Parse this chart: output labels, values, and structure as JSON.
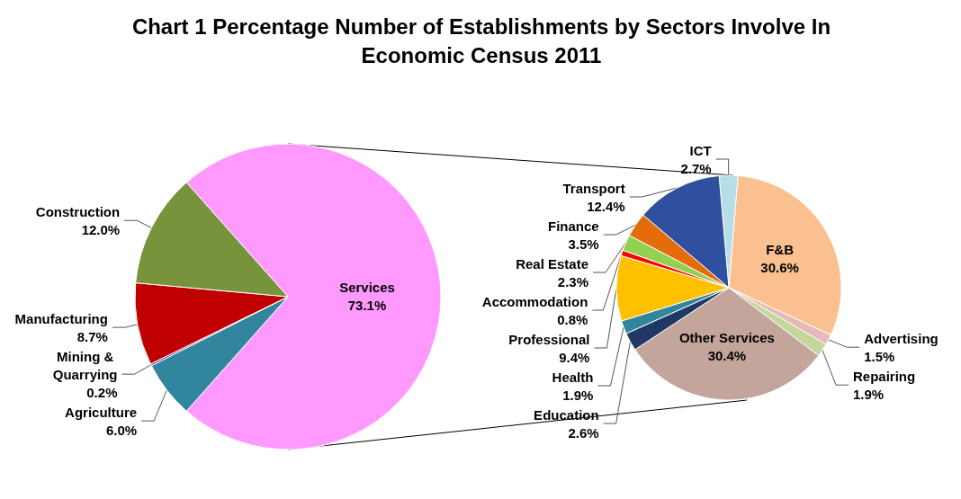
{
  "chart_data": [
    {
      "type": "pie",
      "title": "Chart 1 Percentage Number of Establishments by Sectors Involve In Economic Census 2011",
      "categories": [
        "Services",
        "Agriculture",
        "Mining & Quarrying",
        "Manufacturing",
        "Construction"
      ],
      "values": [
        73.1,
        6.0,
        0.2,
        8.7,
        12.0
      ],
      "value_labels": [
        "73.1%",
        "6.0%",
        "0.2%",
        "8.7%",
        "12.0%"
      ],
      "colors": [
        "#ff99ff",
        "#31859c",
        "#7030a0",
        "#c00000",
        "#77933c"
      ]
    },
    {
      "type": "pie",
      "categories": [
        "ICT",
        "F&B",
        "Advertising",
        "Repairing",
        "Other Services",
        "Education",
        "Health",
        "Professional",
        "Accommodation",
        "Real Estate",
        "Finance",
        "Transport"
      ],
      "values": [
        2.7,
        30.6,
        1.5,
        1.9,
        30.4,
        2.6,
        1.9,
        9.4,
        0.8,
        2.3,
        3.5,
        12.4
      ],
      "value_labels": [
        "2.7%",
        "30.6%",
        "1.5%",
        "1.9%",
        "30.4%",
        "2.6%",
        "1.9%",
        "9.4%",
        "0.8%",
        "2.3%",
        "3.5%",
        "12.4%"
      ],
      "colors": [
        "#b7dee8",
        "#fac090",
        "#e6b9b8",
        "#c3d69b",
        "#c4a59c",
        "#1f3864",
        "#31859c",
        "#ffc000",
        "#ff0000",
        "#92d050",
        "#e46c0a",
        "#2f4f9f"
      ]
    }
  ]
}
